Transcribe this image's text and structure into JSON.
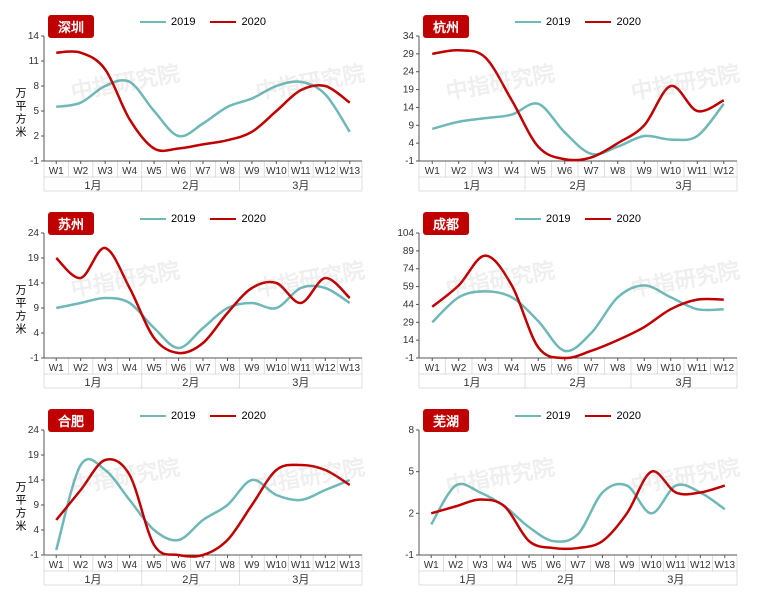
{
  "colors": {
    "s2019": "#6fb8b8",
    "s2020": "#c00000",
    "axis": "#555555",
    "tick_text": "#333333",
    "grid": "#bfbfbf",
    "background": "#ffffff",
    "tag_bg": "#c00000",
    "tag_text": "#ffffff",
    "watermark": "rgba(150,150,150,0.15)"
  },
  "legend_labels": {
    "s2019": "2019",
    "s2020": "2020"
  },
  "y_axis_label": "万平方米",
  "months": [
    "1月",
    "2月",
    "3月"
  ],
  "watermark_text": "中指研究院",
  "line_width": 2.5,
  "font_sizes": {
    "tick": 10,
    "month": 11,
    "city": 13,
    "legend": 11
  },
  "panels": [
    {
      "city": "深圳",
      "weeks": [
        "W1",
        "W2",
        "W3",
        "W4",
        "W5",
        "W6",
        "W7",
        "W8",
        "W9",
        "W10",
        "W11",
        "W12",
        "W13"
      ],
      "month_spans": [
        [
          0,
          3
        ],
        [
          4,
          7
        ],
        [
          8,
          12
        ]
      ],
      "ylim": [
        -1,
        14
      ],
      "yticks": [
        -1,
        2,
        5,
        8,
        11,
        14
      ],
      "s2019": [
        5.5,
        6,
        8,
        8.5,
        5,
        2,
        3.5,
        5.5,
        6.5,
        8,
        8.5,
        7,
        2.5
      ],
      "s2020": [
        12,
        12,
        10,
        4,
        0.5,
        0.5,
        1,
        1.5,
        2.5,
        5,
        7.5,
        8,
        6
      ]
    },
    {
      "city": "杭州",
      "weeks": [
        "W1",
        "W2",
        "W3",
        "W4",
        "W5",
        "W6",
        "W7",
        "W8",
        "W9",
        "W10",
        "W11",
        "W12"
      ],
      "month_spans": [
        [
          0,
          3
        ],
        [
          4,
          7
        ],
        [
          8,
          11
        ]
      ],
      "ylim": [
        -1,
        34
      ],
      "yticks": [
        -1,
        4,
        9,
        14,
        19,
        24,
        29,
        34
      ],
      "s2019": [
        8,
        10,
        11,
        12,
        15,
        7,
        1,
        3,
        6,
        5,
        6,
        15
      ],
      "s2020": [
        29,
        30,
        28,
        16,
        3,
        -0.5,
        0,
        4,
        9,
        20,
        13,
        16
      ]
    },
    {
      "city": "苏州",
      "weeks": [
        "W1",
        "W2",
        "W3",
        "W4",
        "W5",
        "W6",
        "W7",
        "W8",
        "W9",
        "W10",
        "W11",
        "W12",
        "W13"
      ],
      "month_spans": [
        [
          0,
          3
        ],
        [
          4,
          7
        ],
        [
          8,
          12
        ]
      ],
      "ylim": [
        -1,
        24
      ],
      "yticks": [
        -1,
        4,
        9,
        14,
        19,
        24
      ],
      "s2019": [
        9,
        10,
        11,
        10,
        5,
        1,
        5,
        9,
        10,
        9,
        13,
        13,
        10
      ],
      "s2020": [
        19,
        15,
        21,
        13,
        3,
        0,
        2,
        8,
        13,
        14,
        10,
        15,
        11
      ]
    },
    {
      "city": "成都",
      "weeks": [
        "W1",
        "W2",
        "W3",
        "W4",
        "W5",
        "W6",
        "W7",
        "W8",
        "W9",
        "W10",
        "W11",
        "W12"
      ],
      "month_spans": [
        [
          0,
          3
        ],
        [
          4,
          7
        ],
        [
          8,
          11
        ]
      ],
      "ylim": [
        -1,
        104
      ],
      "yticks": [
        -1,
        14,
        29,
        44,
        59,
        74,
        89,
        104
      ],
      "s2019": [
        29,
        50,
        55,
        50,
        30,
        5,
        20,
        50,
        60,
        50,
        40,
        40
      ],
      "s2020": [
        42,
        60,
        85,
        60,
        8,
        -1,
        5,
        14,
        25,
        40,
        48,
        48
      ]
    },
    {
      "city": "合肥",
      "weeks": [
        "W1",
        "W2",
        "W3",
        "W4",
        "W5",
        "W6",
        "W7",
        "W8",
        "W9",
        "W10",
        "W11",
        "W12",
        "W13"
      ],
      "month_spans": [
        [
          0,
          3
        ],
        [
          4,
          7
        ],
        [
          8,
          12
        ]
      ],
      "ylim": [
        -1,
        24
      ],
      "yticks": [
        -1,
        4,
        9,
        14,
        19,
        24
      ],
      "s2019": [
        0,
        17,
        16,
        10,
        4,
        2,
        6,
        9,
        14,
        11,
        10,
        12,
        14
      ],
      "s2020": [
        6,
        12,
        18,
        15,
        1,
        -1,
        -1,
        2,
        9,
        16,
        17,
        16,
        13
      ]
    },
    {
      "city": "芜湖",
      "weeks": [
        "W1",
        "W2",
        "W3",
        "W4",
        "W5",
        "W6",
        "W7",
        "W8",
        "W9",
        "W10",
        "W11",
        "W12",
        "W13"
      ],
      "month_spans": [
        [
          0,
          3
        ],
        [
          4,
          7
        ],
        [
          8,
          12
        ]
      ],
      "ylim": [
        -1,
        8
      ],
      "yticks": [
        -1,
        2,
        5,
        8
      ],
      "s2019": [
        1.2,
        4,
        3.5,
        2.5,
        1,
        0,
        0.5,
        3.5,
        4,
        2,
        4,
        3.5,
        2.3
      ],
      "s2020": [
        2,
        2.5,
        3,
        2.5,
        0,
        -0.5,
        -0.5,
        0,
        2,
        5,
        3.5,
        3.5,
        4
      ]
    }
  ]
}
